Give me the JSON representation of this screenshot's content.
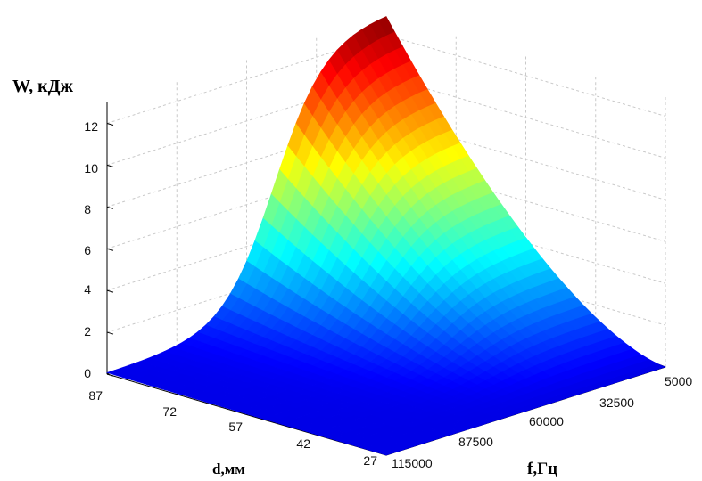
{
  "chart_data": {
    "type": "surface",
    "title": "",
    "zlabel": "W, кДж",
    "xlabel": "d,мм",
    "ylabel": "f,Гц",
    "zlim": [
      0,
      13
    ],
    "zticks": [
      "0",
      "2",
      "4",
      "6",
      "8",
      "10",
      "12"
    ],
    "x_ticks": [
      "87",
      "72",
      "57",
      "42",
      "27"
    ],
    "y_ticks": [
      "115000",
      "87500",
      "60000",
      "32500",
      "5000"
    ],
    "d": [
      87,
      72,
      57,
      42,
      27
    ],
    "f": [
      115000,
      87500,
      60000,
      32500,
      5000
    ],
    "grid": true,
    "colormap": "jet",
    "samples": [
      {
        "d": 87,
        "f": 5000,
        "W": 13.0
      },
      {
        "d": 87,
        "f": 115000,
        "W": 0.1
      },
      {
        "d": 27,
        "f": 5000,
        "W": 0.0
      },
      {
        "d": 27,
        "f": 115000,
        "W": 0.0
      }
    ]
  }
}
